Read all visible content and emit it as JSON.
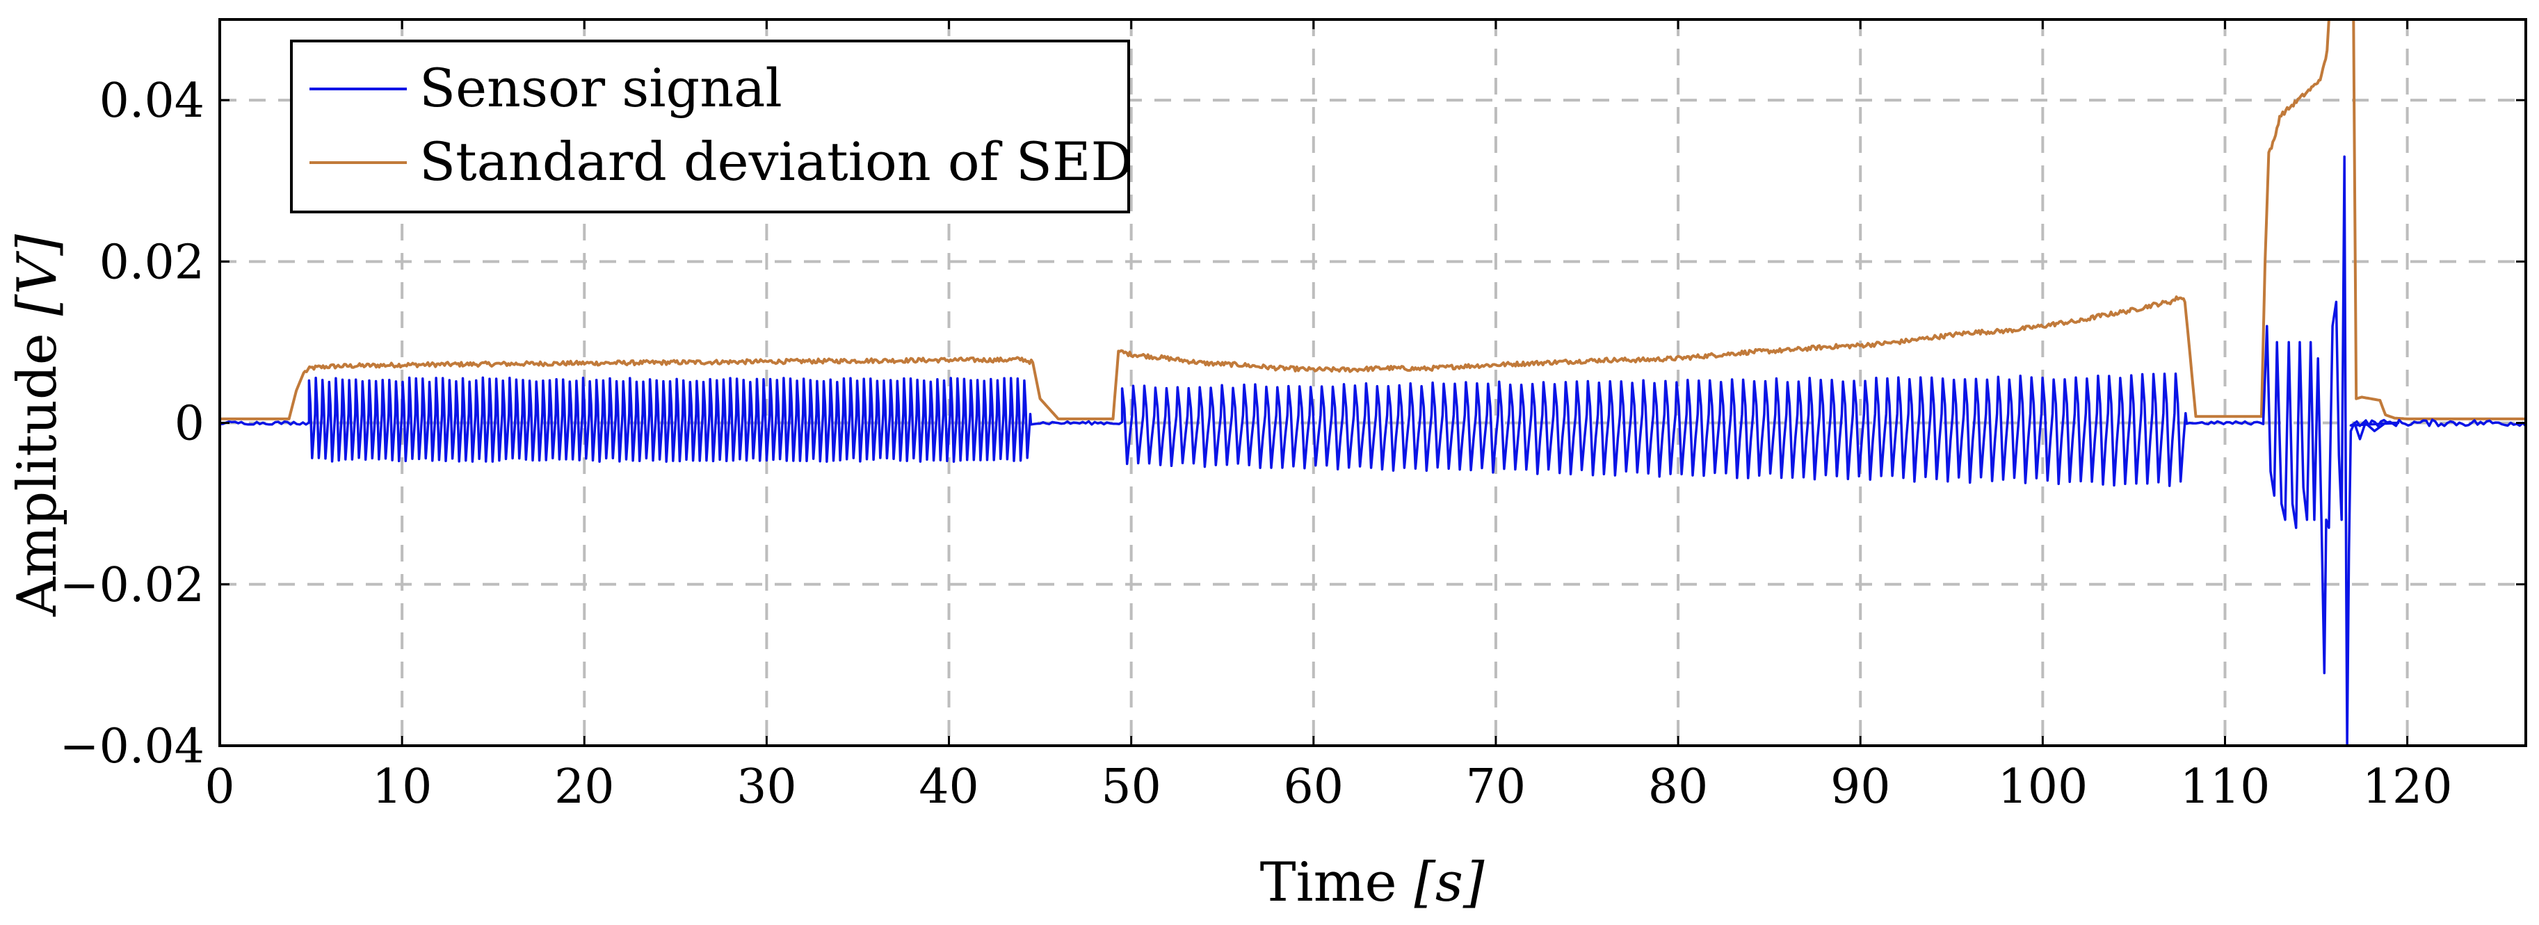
{
  "chart_data": {
    "type": "line",
    "title": "",
    "xlabel": "Time [s]",
    "xlabel_main": "Time ",
    "xlabel_unit": "[s]",
    "ylabel": "Amplitude [V]",
    "ylabel_main": "Amplitude ",
    "ylabel_unit": "[V]",
    "xlim": [
      0,
      126.5
    ],
    "ylim": [
      -0.04,
      0.05
    ],
    "grid": true,
    "legend_position": "top-left",
    "x_ticks": [
      {
        "value": 0,
        "label": "0"
      },
      {
        "value": 10,
        "label": "10"
      },
      {
        "value": 20,
        "label": "20"
      },
      {
        "value": 30,
        "label": "30"
      },
      {
        "value": 40,
        "label": "40"
      },
      {
        "value": 50,
        "label": "50"
      },
      {
        "value": 60,
        "label": "60"
      },
      {
        "value": 70,
        "label": "70"
      },
      {
        "value": 80,
        "label": "80"
      },
      {
        "value": 90,
        "label": "90"
      },
      {
        "value": 100,
        "label": "100"
      },
      {
        "value": 110,
        "label": "110"
      },
      {
        "value": 120,
        "label": "120"
      }
    ],
    "y_ticks": [
      {
        "value": 0.04,
        "label": "0.04"
      },
      {
        "value": 0.02,
        "label": "0.02"
      },
      {
        "value": 0,
        "label": "0"
      },
      {
        "value": -0.02,
        "label": "−0.02"
      },
      {
        "value": -0.04,
        "label": "−0.04"
      }
    ],
    "series": [
      {
        "name": "Sensor signal",
        "color": "#0a14e6",
        "description": "oscillating sensor voltage; envelope summarised by segments",
        "baseline": 0.0,
        "segments": [
          {
            "start": 0,
            "end": 4.9,
            "kind": "flat",
            "noise": 0.0002
          },
          {
            "start": 4.9,
            "end": 44.5,
            "kind": "oscillation",
            "cycles": 108,
            "max_start": 0.0055,
            "max_end": 0.0055,
            "min_start": -0.0047,
            "min_end": -0.0047
          },
          {
            "start": 44.5,
            "end": 49.5,
            "kind": "flat",
            "noise": 0.0002
          },
          {
            "start": 49.5,
            "end": 107.9,
            "kind": "oscillation",
            "cycles": 96,
            "max_start": 0.0045,
            "max_end": 0.006,
            "min_start": -0.0052,
            "min_end": -0.0078
          },
          {
            "start": 107.9,
            "end": 112.1,
            "kind": "flat",
            "noise": 0.0002
          },
          {
            "start": 112.1,
            "end": 116.9,
            "kind": "burst"
          },
          {
            "start": 116.9,
            "end": 126.5,
            "kind": "flat",
            "noise": 0.0004
          }
        ],
        "burst_points": [
          [
            112.1,
            0.0
          ],
          [
            112.3,
            0.012
          ],
          [
            112.5,
            -0.006
          ],
          [
            112.7,
            -0.009
          ],
          [
            112.85,
            0.01
          ],
          [
            113.1,
            -0.01
          ],
          [
            113.3,
            -0.012
          ],
          [
            113.5,
            0.01
          ],
          [
            113.7,
            -0.01
          ],
          [
            113.9,
            -0.013
          ],
          [
            114.1,
            0.01
          ],
          [
            114.3,
            -0.008
          ],
          [
            114.5,
            -0.012
          ],
          [
            114.7,
            0.01
          ],
          [
            114.9,
            -0.012
          ],
          [
            115.1,
            0.008
          ],
          [
            115.3,
            -0.013
          ],
          [
            115.45,
            -0.031
          ],
          [
            115.55,
            -0.012
          ],
          [
            115.7,
            -0.013
          ],
          [
            115.9,
            0.012
          ],
          [
            116.1,
            0.015
          ],
          [
            116.25,
            -0.004
          ],
          [
            116.4,
            -0.012
          ],
          [
            116.55,
            0.033
          ],
          [
            116.65,
            -0.02
          ],
          [
            116.7,
            -0.04
          ],
          [
            116.8,
            -0.016
          ],
          [
            116.9,
            -0.001
          ],
          [
            117.1,
            0.0
          ],
          [
            117.4,
            -0.002
          ],
          [
            117.7,
            0.0
          ],
          [
            118.2,
            -0.001
          ],
          [
            118.8,
            0.0
          ],
          [
            119.5,
            0.0
          ]
        ]
      },
      {
        "name": "Standard deviation of SED",
        "color": "#c17a3a",
        "x": [
          0,
          3.8,
          4.2,
          4.6,
          5.0,
          6.0,
          10,
          20,
          30,
          40,
          43.0,
          44.0,
          44.6,
          45.0,
          46.0,
          49.0,
          49.3,
          49.6,
          50,
          52,
          54,
          56,
          58,
          60,
          62,
          64,
          66,
          68,
          70,
          72,
          74,
          76,
          78,
          80,
          82,
          84,
          86,
          88,
          90,
          92,
          94,
          96,
          98,
          100,
          101,
          102,
          103,
          104,
          105,
          106,
          106.5,
          107,
          107.5,
          107.8,
          108.1,
          108.4,
          112.0,
          112.2,
          112.4,
          112.7,
          113.0,
          113.5,
          114.0,
          114.5,
          115.0,
          115.3,
          115.6,
          115.7,
          116.95,
          117.05,
          117.2,
          117.5,
          118.0,
          118.5,
          118.8,
          119.3,
          120.0,
          126.5
        ],
        "values": [
          0.0005,
          0.0005,
          0.004,
          0.0062,
          0.0068,
          0.007,
          0.0072,
          0.0074,
          0.0076,
          0.0078,
          0.0078,
          0.0079,
          0.0075,
          0.003,
          0.0005,
          0.0005,
          0.0089,
          0.0087,
          0.0085,
          0.008,
          0.0074,
          0.0072,
          0.0068,
          0.0066,
          0.0066,
          0.0068,
          0.0067,
          0.007,
          0.0072,
          0.0074,
          0.0076,
          0.0078,
          0.0078,
          0.008,
          0.0084,
          0.0088,
          0.009,
          0.0094,
          0.0096,
          0.01,
          0.0106,
          0.0112,
          0.0114,
          0.012,
          0.0124,
          0.0126,
          0.0132,
          0.0136,
          0.014,
          0.0146,
          0.0148,
          0.015,
          0.0156,
          0.0152,
          0.008,
          0.0008,
          0.0008,
          0.02,
          0.0335,
          0.035,
          0.038,
          0.039,
          0.04,
          0.041,
          0.042,
          0.043,
          0.046,
          0.05,
          0.05,
          0.05,
          0.003,
          0.0032,
          0.003,
          0.0028,
          0.001,
          0.0006,
          0.0005,
          0.0005
        ]
      }
    ],
    "legend": {
      "entries": [
        {
          "label": "Sensor signal",
          "color": "#0a14e6"
        },
        {
          "label": "Standard deviation of SED",
          "color": "#c17a3a"
        }
      ]
    }
  }
}
